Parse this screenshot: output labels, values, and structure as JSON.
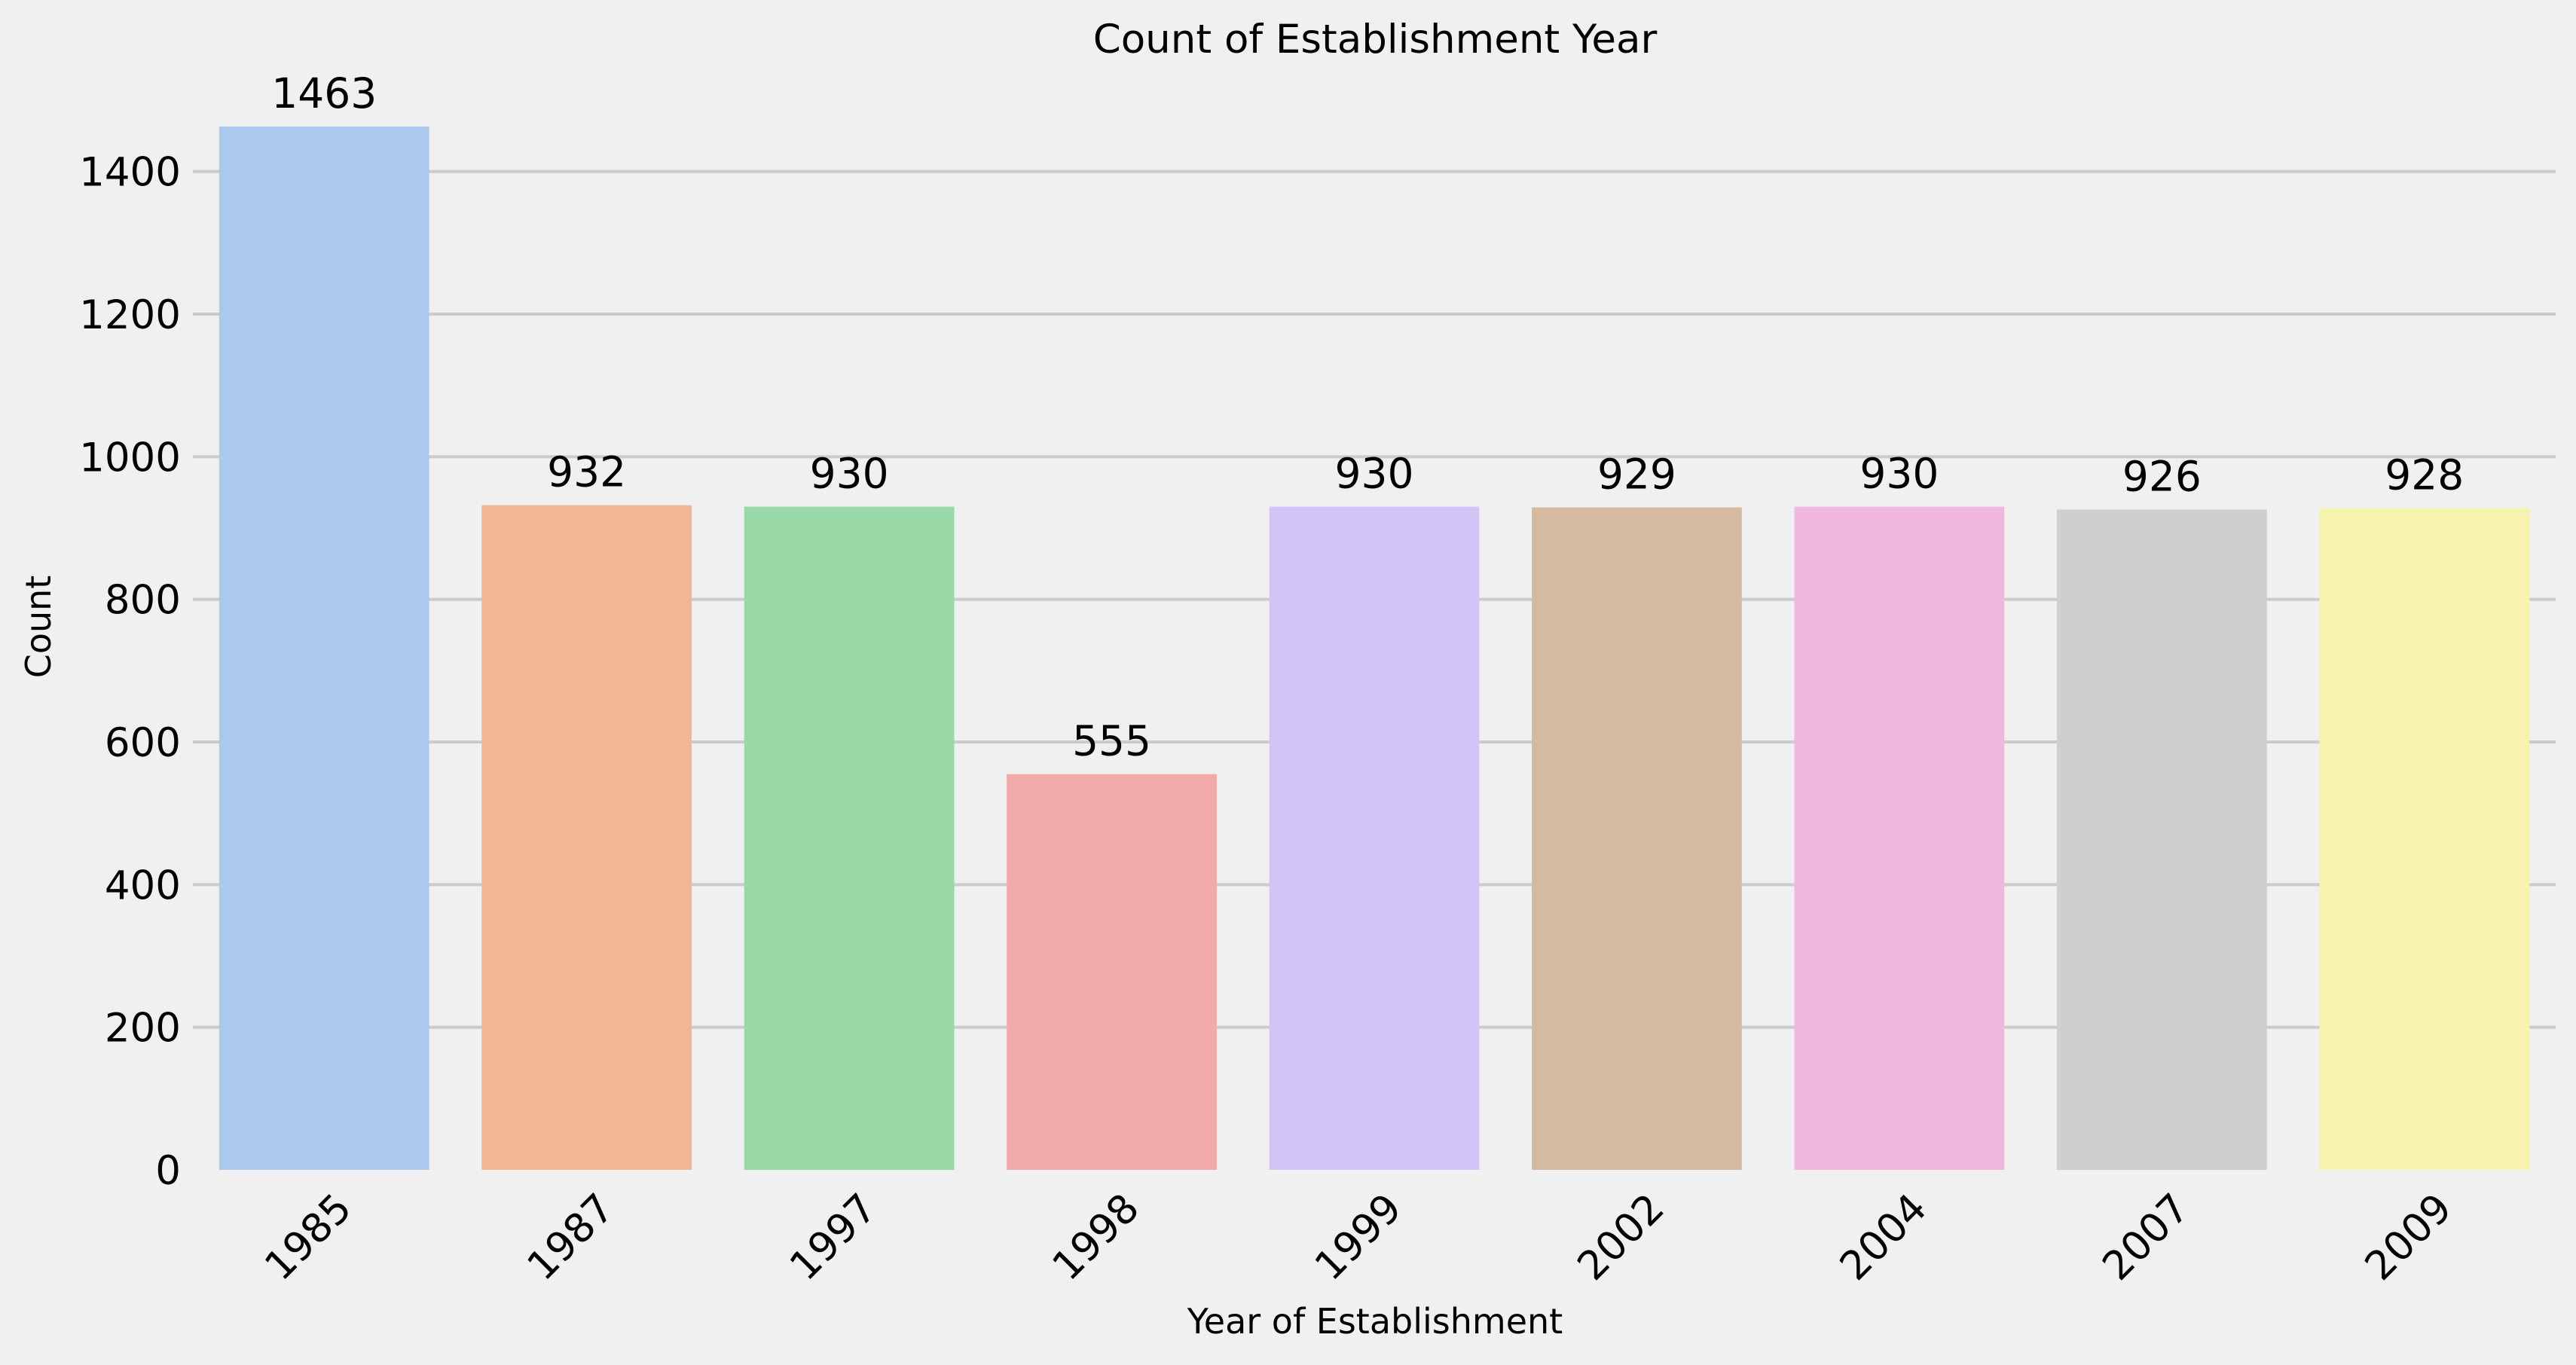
{
  "chart_data": {
    "type": "bar",
    "title": "Count of Establishment Year",
    "xlabel": "Year of Establishment",
    "ylabel": "Count",
    "categories": [
      "1985",
      "1987",
      "1997",
      "1998",
      "1999",
      "2002",
      "2004",
      "2007",
      "2009"
    ],
    "values": [
      1463,
      932,
      930,
      555,
      930,
      929,
      930,
      926,
      928
    ],
    "data_labels": [
      "1463",
      "932",
      "930",
      "555",
      "930",
      "929",
      "930",
      "926",
      "928"
    ],
    "colors": [
      "#abc9ed",
      "#f1b793",
      "#99d9a8",
      "#f2abab",
      "#d2c4f4",
      "#d5ba9f",
      "#f0b8e0",
      "#cfcfcf",
      "#f5f3ad"
    ],
    "ylim": [
      0,
      1463
    ],
    "y_ticks": [
      0,
      200,
      400,
      600,
      800,
      1000,
      1200,
      1400
    ],
    "y_tick_labels": [
      "0",
      "200",
      "400",
      "600",
      "800",
      "1000",
      "1200",
      "1400"
    ],
    "grid": "y",
    "background": "#f0f0f0",
    "x_tick_rotation_deg": 45
  }
}
